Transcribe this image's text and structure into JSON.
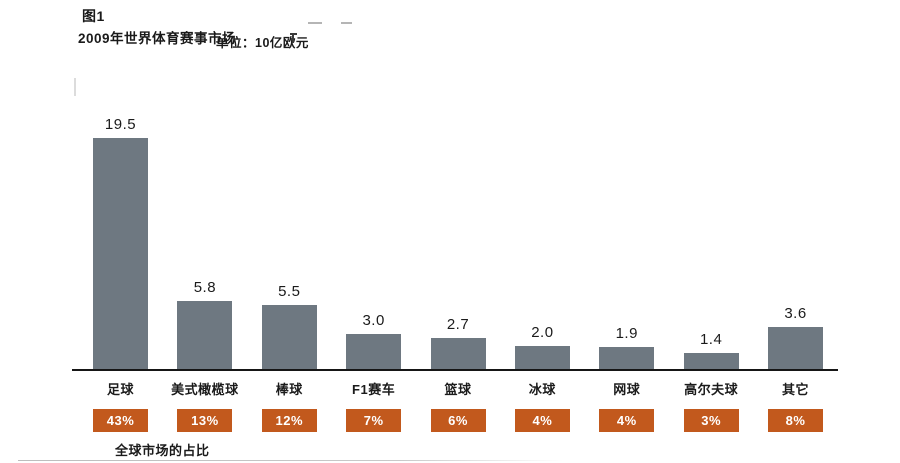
{
  "header": {
    "figure_label": "图1",
    "title": "2009年世界体育赛事市场",
    "unit_label": "单位：10亿欧元"
  },
  "chart_data": {
    "type": "bar",
    "title": "2009年世界体育赛事市场",
    "unit": "10亿欧元",
    "categories": [
      "足球",
      "美式橄榄球",
      "棒球",
      "F1赛车",
      "篮球",
      "冰球",
      "网球",
      "高尔夫球",
      "其它"
    ],
    "values": [
      19.5,
      5.8,
      5.5,
      3.0,
      2.7,
      2.0,
      1.9,
      1.4,
      3.6
    ],
    "value_labels": [
      "19.5",
      "5.8",
      "5.5",
      "3.0",
      "2.7",
      "2.0",
      "1.9",
      "1.4",
      "3.6"
    ],
    "share_percents": [
      "43%",
      "13%",
      "12%",
      "7%",
      "6%",
      "4%",
      "4%",
      "3%",
      "8%"
    ],
    "ylim": [
      0,
      20
    ],
    "grid": false,
    "legend": false,
    "bar_color": "#6e7881",
    "share_badge_color": "#c2591d",
    "axis_color": "#161616"
  },
  "footer": {
    "share_caption": "全球市场的占比"
  }
}
